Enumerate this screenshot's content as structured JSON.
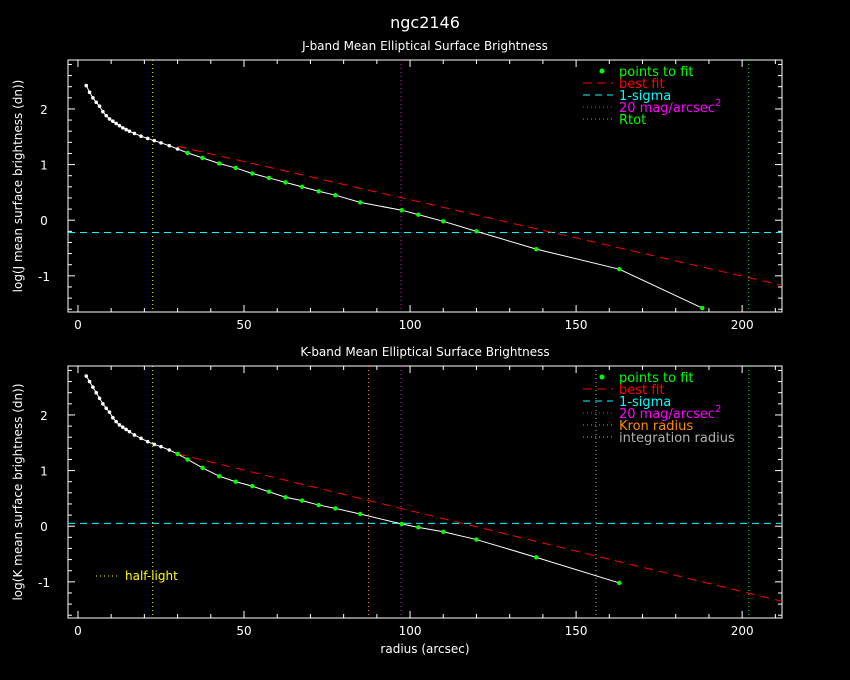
{
  "figure": {
    "title": "ngc2146",
    "xlabel": "radius (arcsec)"
  },
  "chart_data": [
    {
      "type": "line",
      "title": "J-band Mean Elliptical Surface Brightness",
      "xlabel": "",
      "ylabel": "log(J mean surface brightness (dn))",
      "xlim": [
        -3,
        212
      ],
      "ylim": [
        -1.65,
        2.88
      ],
      "xticks": [
        0,
        50,
        100,
        150,
        200
      ],
      "yticks": [
        -1,
        0,
        1,
        2
      ],
      "profile": {
        "x": [
          2.5,
          3.5,
          4.5,
          5.5,
          6.5,
          7.5,
          8.5,
          9.5,
          10.5,
          11.5,
          12.5,
          13.5,
          14.5,
          15.5,
          17,
          19,
          21,
          23,
          25,
          27.5,
          30,
          33,
          37.5,
          42.5,
          47.5,
          52.5,
          57.5,
          62.5,
          67.5,
          72.5,
          77.5,
          85,
          97.5,
          102.5,
          110,
          120,
          138,
          163,
          188
        ],
        "y": [
          2.42,
          2.3,
          2.2,
          2.12,
          2.05,
          1.95,
          1.88,
          1.82,
          1.78,
          1.74,
          1.7,
          1.66,
          1.63,
          1.6,
          1.56,
          1.51,
          1.47,
          1.43,
          1.39,
          1.34,
          1.28,
          1.21,
          1.12,
          1.02,
          0.94,
          0.84,
          0.76,
          0.68,
          0.6,
          0.52,
          0.45,
          0.32,
          0.18,
          0.1,
          -0.02,
          -0.2,
          -0.52,
          -0.88,
          -1.58
        ]
      },
      "series": [
        {
          "name": "points to fit",
          "color": "#00ff00",
          "x": [
            33,
            37.5,
            42.5,
            47.5,
            52.5,
            57.5,
            62.5,
            67.5,
            72.5,
            77.5,
            85,
            97.5,
            102.5,
            110,
            120,
            138,
            163,
            188
          ],
          "y": [
            1.21,
            1.12,
            1.02,
            0.94,
            0.84,
            0.76,
            0.68,
            0.6,
            0.52,
            0.45,
            0.32,
            0.18,
            0.1,
            -0.02,
            -0.2,
            -0.52,
            -0.88,
            -1.58
          ]
        },
        {
          "name": "best fit",
          "color": "#ff0000",
          "x": [
            30,
            212
          ],
          "y": [
            1.33,
            -1.17
          ]
        },
        {
          "name": "1-sigma",
          "color": "#00ffff",
          "y": -0.22
        },
        {
          "name": "20 mag/arcsec",
          "superscript": "2",
          "color": "#ff00ff",
          "x": 97.3
        },
        {
          "name": "Rtot",
          "color": "#00ff00",
          "x": 202
        }
      ],
      "half_light_x": 22.5,
      "half_light_color": "#ffff00",
      "legend": "top-right"
    },
    {
      "type": "line",
      "title": "K-band Mean Elliptical Surface Brightness",
      "xlabel": "radius (arcsec)",
      "ylabel": "log(K mean surface brightness (dn))",
      "xlim": [
        -3,
        212
      ],
      "ylim": [
        -1.65,
        2.88
      ],
      "xticks": [
        0,
        50,
        100,
        150,
        200
      ],
      "yticks": [
        -1,
        0,
        1,
        2
      ],
      "profile": {
        "x": [
          2.5,
          3.5,
          4.5,
          5.5,
          6.5,
          7.5,
          8.5,
          9.5,
          10.5,
          11.5,
          12.5,
          13.5,
          14.5,
          15.5,
          17,
          19,
          21,
          23,
          25,
          27.5,
          30,
          33,
          37.5,
          42.5,
          47.5,
          52.5,
          57.5,
          62.5,
          67.5,
          72.5,
          77.5,
          85,
          97.5,
          102.5,
          110,
          120,
          138,
          163
        ],
        "y": [
          2.7,
          2.6,
          2.5,
          2.4,
          2.3,
          2.2,
          2.12,
          2.05,
          1.95,
          1.88,
          1.82,
          1.78,
          1.74,
          1.7,
          1.64,
          1.58,
          1.52,
          1.47,
          1.43,
          1.37,
          1.3,
          1.2,
          1.05,
          0.9,
          0.8,
          0.72,
          0.62,
          0.52,
          0.46,
          0.38,
          0.32,
          0.22,
          0.04,
          -0.02,
          -0.1,
          -0.24,
          -0.56,
          -1.02
        ]
      },
      "series": [
        {
          "name": "points to fit",
          "color": "#00ff00",
          "x": [
            30,
            33,
            37.5,
            42.5,
            47.5,
            52.5,
            57.5,
            62.5,
            67.5,
            72.5,
            77.5,
            85,
            97.5,
            102.5,
            110,
            120,
            138,
            163
          ],
          "y": [
            1.3,
            1.2,
            1.05,
            0.9,
            0.8,
            0.72,
            0.62,
            0.52,
            0.46,
            0.38,
            0.32,
            0.22,
            0.04,
            -0.02,
            -0.1,
            -0.24,
            -0.56,
            -1.02
          ]
        },
        {
          "name": "best fit",
          "color": "#ff0000",
          "x": [
            30,
            212
          ],
          "y": [
            1.3,
            -1.35
          ]
        },
        {
          "name": "1-sigma",
          "color": "#00ffff",
          "y": 0.05
        },
        {
          "name": "20 mag/arcsec",
          "superscript": "2",
          "color": "#ff00ff",
          "x": 97.3
        },
        {
          "name": "Kron radius",
          "color": "#ff8c00",
          "x": 87.5
        },
        {
          "name": "integration radius",
          "color": "#b0b0b0",
          "x": 156
        },
        {
          "name": "",
          "color": "#00ff00",
          "x": 202
        }
      ],
      "half_light_x": 22.5,
      "half_light_color": "#ffff00",
      "half_light_label": "half-light",
      "legend": "top-right"
    }
  ]
}
